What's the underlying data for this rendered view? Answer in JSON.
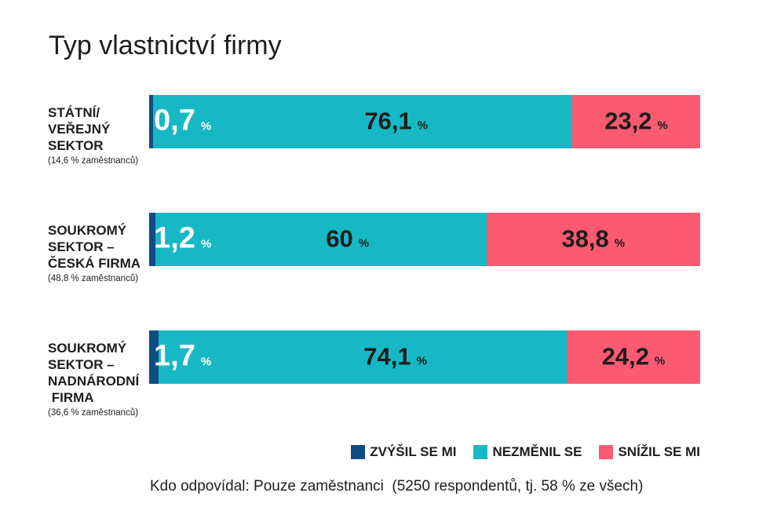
{
  "chart_data": {
    "type": "bar",
    "variant": "horizontal-stacked",
    "title": "Typ vlastnictví firmy",
    "unit": "%",
    "xlim": [
      0,
      100
    ],
    "grid": false,
    "legend_position": "bottom-right",
    "legend": [
      {
        "label": "ZVÝŠIL SE MI",
        "color": "#0e4c85"
      },
      {
        "label": "NEZMĚNIL SE",
        "color": "#17b8c5"
      },
      {
        "label": "SNÍŽIL SE MI",
        "color": "#fc5a71"
      }
    ],
    "rows": [
      {
        "category": "STÁTNÍ/\nVEŘEJNÝ\nSEKTOR",
        "note": "(14,6 % zaměstnanců)",
        "values": [
          0.7,
          76.1,
          23.2
        ],
        "labels": [
          "0,7",
          "76,1",
          "23,2"
        ]
      },
      {
        "category": "SOUKROMÝ\nSEKTOR –\nČESKÁ FIRMA",
        "note": "(48,8 % zaměstnanců)",
        "values": [
          1.2,
          60,
          38.8
        ],
        "labels": [
          "1,2",
          "60",
          "38,8"
        ]
      },
      {
        "category": "SOUKROMÝ\nSEKTOR –\nNADNÁRODNÍ\n FIRMA",
        "note": "(36,6 % zaměstnanců)",
        "values": [
          1.7,
          74.1,
          24.2
        ],
        "labels": [
          "1,7",
          "74,1",
          "24,2"
        ]
      }
    ]
  },
  "footer": "Kdo odpovídal: Pouze zaměstnanci  (5250 respondentů, tj. 58 % ze všech)"
}
